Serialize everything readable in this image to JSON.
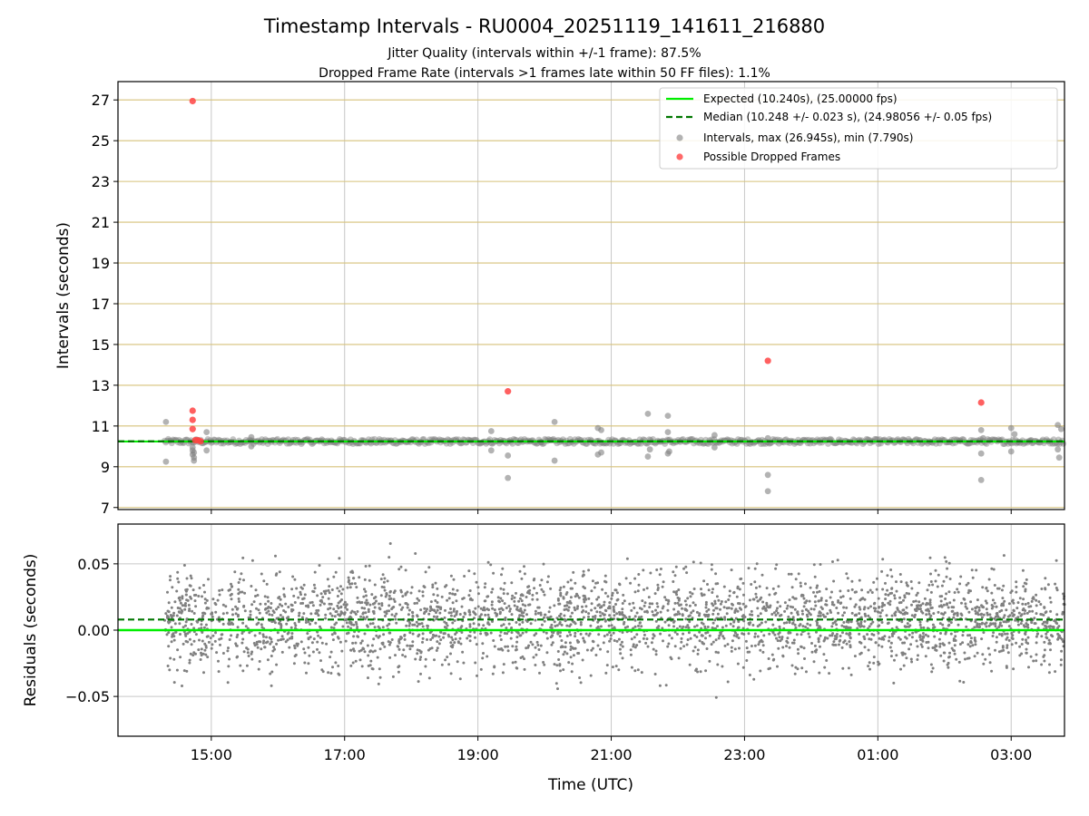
{
  "chart_data": {
    "title": "Timestamp Intervals - RU0004_20251119_141611_216880",
    "subtitle_lines": [
      "Jitter Quality (intervals within +/-1 frame): 87.5%",
      "Dropped Frame Rate (intervals >1 frames late within 50 FF files): 1.1%"
    ],
    "xlabel": "Time (UTC)",
    "x_tick_labels": [
      "15:00",
      "17:00",
      "19:00",
      "21:00",
      "23:00",
      "01:00",
      "03:00"
    ],
    "x_range_hours": [
      13.6,
      27.8
    ],
    "colors": {
      "expected": "#00ee00",
      "median": "#007700",
      "intervals": "#808080",
      "dropped": "#ff4444",
      "hgrid_top": "#d6c27a",
      "grid": "#c8c8c8"
    },
    "panels": [
      {
        "id": "intervals",
        "type": "scatter",
        "ylabel": "Intervals (seconds)",
        "ylim": [
          6.9,
          27.9
        ],
        "y_ticks": [
          7,
          9,
          11,
          13,
          15,
          17,
          19,
          21,
          23,
          25,
          27
        ],
        "y_tick_labels": [
          "7",
          "9",
          "11",
          "13",
          "15",
          "17",
          "19",
          "21",
          "23",
          "25",
          "27"
        ],
        "expected": 10.24,
        "median": 10.248,
        "legend_position": "top-right",
        "legend": [
          {
            "kind": "line",
            "style": "solid",
            "label": "Expected (10.240s), (25.00000 fps)"
          },
          {
            "kind": "line",
            "style": "dashed",
            "label": "Median (10.248 +/- 0.023 s), (24.98056 +/- 0.05 fps)"
          },
          {
            "kind": "marker",
            "color": "intervals",
            "label": "Intervals, max (26.945s), min (7.790s)"
          },
          {
            "kind": "marker",
            "color": "dropped",
            "label": "Possible Dropped Frames"
          }
        ],
        "band": {
          "x_start": 14.3,
          "x_end": 27.8,
          "y_center": 10.24,
          "half_width": 0.12
        },
        "outliers": [
          [
            14.32,
            11.2
          ],
          [
            14.32,
            9.25
          ],
          [
            14.72,
            9.95
          ],
          [
            14.72,
            9.8
          ],
          [
            14.72,
            9.6
          ],
          [
            14.74,
            9.45
          ],
          [
            14.74,
            9.3
          ],
          [
            14.74,
            9.7
          ],
          [
            14.93,
            10.7
          ],
          [
            14.93,
            9.8
          ],
          [
            15.6,
            10.45
          ],
          [
            15.6,
            10.0
          ],
          [
            19.2,
            10.75
          ],
          [
            19.2,
            9.8
          ],
          [
            19.45,
            9.55
          ],
          [
            19.45,
            8.45
          ],
          [
            19.95,
            10.2
          ],
          [
            20.15,
            11.2
          ],
          [
            20.15,
            9.3
          ],
          [
            20.8,
            10.9
          ],
          [
            20.85,
            10.8
          ],
          [
            20.8,
            9.6
          ],
          [
            20.85,
            9.7
          ],
          [
            21.55,
            11.6
          ],
          [
            21.58,
            9.85
          ],
          [
            21.55,
            9.5
          ],
          [
            21.85,
            11.5
          ],
          [
            21.85,
            10.7
          ],
          [
            21.87,
            9.75
          ],
          [
            21.85,
            9.65
          ],
          [
            22.55,
            10.55
          ],
          [
            22.55,
            9.95
          ],
          [
            23.35,
            8.6
          ],
          [
            23.35,
            7.8
          ],
          [
            23.35,
            10.4
          ],
          [
            26.55,
            10.8
          ],
          [
            26.58,
            10.4
          ],
          [
            26.55,
            9.65
          ],
          [
            26.55,
            8.35
          ],
          [
            27.0,
            10.9
          ],
          [
            27.05,
            10.6
          ],
          [
            27.0,
            9.75
          ],
          [
            27.1,
            10.2
          ],
          [
            27.7,
            11.05
          ],
          [
            27.75,
            10.85
          ],
          [
            27.7,
            9.85
          ],
          [
            27.72,
            9.45
          ],
          [
            27.3,
            10.3
          ]
        ],
        "dropped": [
          [
            14.72,
            26.945
          ],
          [
            14.72,
            11.75
          ],
          [
            14.72,
            11.3
          ],
          [
            14.72,
            10.85
          ],
          [
            14.76,
            10.3
          ],
          [
            14.8,
            10.3
          ],
          [
            14.84,
            10.25
          ],
          [
            19.45,
            12.7
          ],
          [
            23.35,
            14.2
          ],
          [
            26.55,
            12.15
          ]
        ]
      },
      {
        "id": "residuals",
        "type": "scatter",
        "ylabel": "Residuals (seconds)",
        "ylim": [
          -0.08,
          0.08
        ],
        "y_ticks": [
          -0.05,
          0.0,
          0.05
        ],
        "y_tick_labels": [
          "−0.05",
          "0.00",
          "0.05"
        ],
        "expected_line": 0.0,
        "median_line": 0.008,
        "scatter_x_range": [
          14.3,
          27.8
        ],
        "scatter_point_count": 3200,
        "scatter_mean": 0.008,
        "scatter_sd": 0.026
      }
    ]
  }
}
